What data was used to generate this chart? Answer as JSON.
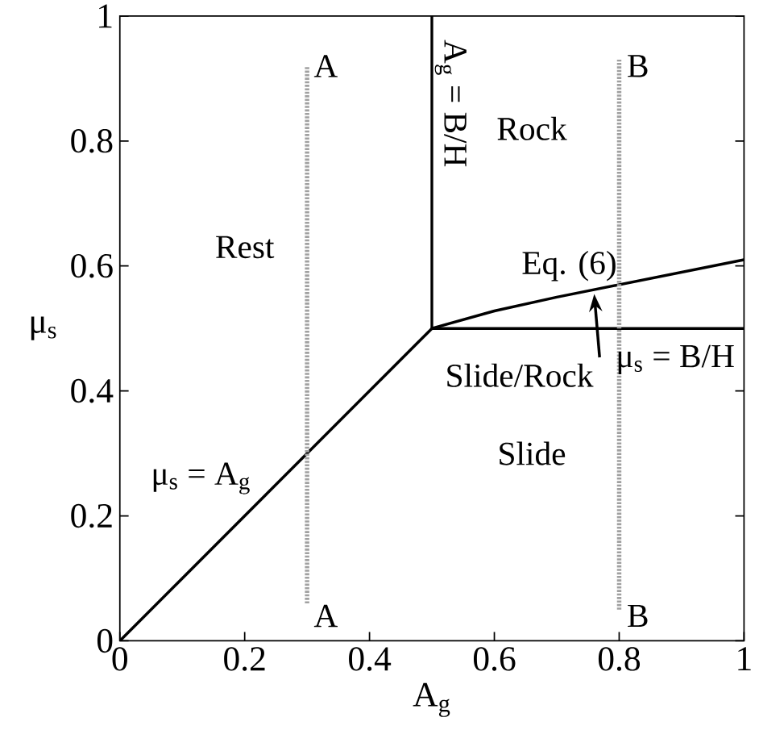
{
  "chart_data": {
    "type": "line",
    "xlabel": "A$_{g}$",
    "ylabel": "μ$_{s}$",
    "xlim": [
      0,
      1
    ],
    "ylim": [
      0,
      1
    ],
    "xticks": [
      0,
      0.2,
      0.4,
      0.6,
      0.8,
      1
    ],
    "yticks": [
      0,
      0.2,
      0.4,
      0.6,
      0.8,
      1
    ],
    "grid": false,
    "marker": "none",
    "series": [
      {
        "color": "#000000",
        "line_style": "solid",
        "x": [
          0,
          0.5
        ],
        "values": [
          0,
          0.5
        ]
      },
      {
        "color": "#000000",
        "line_style": "solid",
        "x": [
          0.5,
          0.5
        ],
        "values": [
          0.5,
          1
        ]
      },
      {
        "color": "#000000",
        "line_style": "solid",
        "x": [
          0.5,
          1
        ],
        "values": [
          0.5,
          0.5
        ]
      },
      {
        "color": "#000000",
        "line_style": "solid",
        "x": [
          0.5,
          0.6,
          0.7,
          0.8,
          0.9,
          1.0
        ],
        "values": [
          0.5,
          0.528,
          0.55,
          0.57,
          0.59,
          0.61
        ]
      },
      {
        "color": "#a0a0a0",
        "line_style": "dotted",
        "x": [
          0.3,
          0.3
        ],
        "values": [
          0.06,
          0.92
        ]
      },
      {
        "color": "#a0a0a0",
        "line_style": "dotted",
        "x": [
          0.8,
          0.8
        ],
        "values": [
          0.05,
          0.93
        ]
      }
    ],
    "annotations": [
      "Rest",
      "Rock",
      "A$_{g}$ = B/H",
      "Eq. (6)",
      "μ$_{s}$ = B/H",
      "Slide/Rock",
      "Slide",
      "μ$_{s}$ = A$_{g}$",
      "A",
      "A",
      "B",
      "B"
    ]
  }
}
